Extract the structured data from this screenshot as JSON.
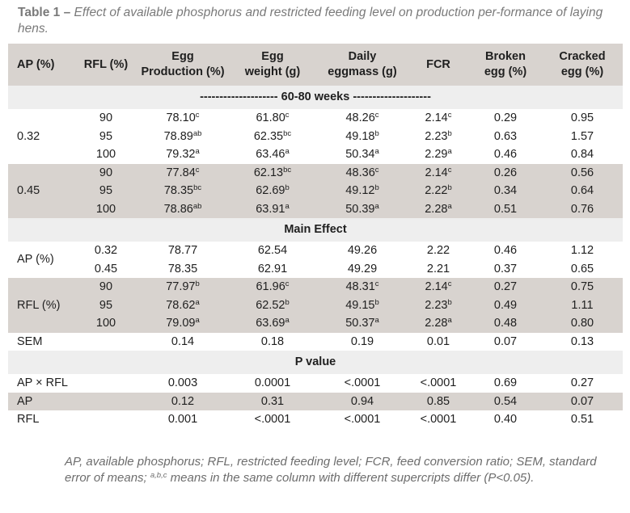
{
  "caption": {
    "label": "Table 1 –",
    "title": "Effect of available phosphorus and restricted feeding level on production per-formance of laying hens."
  },
  "headers": [
    {
      "l1": "AP (%)",
      "l2": ""
    },
    {
      "l1": "RFL (%)",
      "l2": ""
    },
    {
      "l1": "Egg",
      "l2": "Production (%)"
    },
    {
      "l1": "Egg",
      "l2": "weight (g)"
    },
    {
      "l1": "Daily",
      "l2": "eggmass (g)"
    },
    {
      "l1": "FCR",
      "l2": ""
    },
    {
      "l1": "Broken",
      "l2": "egg (%)"
    },
    {
      "l1": "Cracked",
      "l2": "egg (%)"
    }
  ],
  "sections": {
    "weeks": "-------------------- 60-80 weeks --------------------",
    "main_effect": "Main Effect",
    "p_value": "P value"
  },
  "weeks_groups": [
    {
      "ap": "0.32",
      "rows": [
        {
          "rfl": "90",
          "egg_prod": "78.10",
          "egg_prod_sup": "c",
          "egg_wt": "61.80",
          "egg_wt_sup": "c",
          "eggmass": "48.26",
          "eggmass_sup": "c",
          "fcr": "2.14",
          "fcr_sup": "c",
          "broken": "0.29",
          "cracked": "0.95"
        },
        {
          "rfl": "95",
          "egg_prod": "78.89",
          "egg_prod_sup": "ab",
          "egg_wt": "62.35",
          "egg_wt_sup": "bc",
          "eggmass": "49.18",
          "eggmass_sup": "b",
          "fcr": "2.23",
          "fcr_sup": "b",
          "broken": "0.63",
          "cracked": "1.57"
        },
        {
          "rfl": "100",
          "egg_prod": "79.32",
          "egg_prod_sup": "a",
          "egg_wt": "63.46",
          "egg_wt_sup": "a",
          "eggmass": "50.34",
          "eggmass_sup": "a",
          "fcr": "2.29",
          "fcr_sup": "a",
          "broken": "0.46",
          "cracked": "0.84"
        }
      ]
    },
    {
      "ap": "0.45",
      "rows": [
        {
          "rfl": "90",
          "egg_prod": "77.84",
          "egg_prod_sup": "c",
          "egg_wt": "62.13",
          "egg_wt_sup": "bc",
          "eggmass": "48.36",
          "eggmass_sup": "c",
          "fcr": "2.14",
          "fcr_sup": "c",
          "broken": "0.26",
          "cracked": "0.56"
        },
        {
          "rfl": "95",
          "egg_prod": "78.35",
          "egg_prod_sup": "bc",
          "egg_wt": "62.69",
          "egg_wt_sup": "b",
          "eggmass": "49.12",
          "eggmass_sup": "b",
          "fcr": "2.22",
          "fcr_sup": "b",
          "broken": "0.34",
          "cracked": "0.64"
        },
        {
          "rfl": "100",
          "egg_prod": "78.86",
          "egg_prod_sup": "ab",
          "egg_wt": "63.91",
          "egg_wt_sup": "a",
          "eggmass": "50.39",
          "eggmass_sup": "a",
          "fcr": "2.28",
          "fcr_sup": "a",
          "broken": "0.51",
          "cracked": "0.76"
        }
      ]
    }
  ],
  "main_ap": {
    "label": "AP (%)",
    "rows": [
      {
        "level": "0.32",
        "egg_prod": "78.77",
        "egg_wt": "62.54",
        "eggmass": "49.26",
        "fcr": "2.22",
        "broken": "0.46",
        "cracked": "1.12"
      },
      {
        "level": "0.45",
        "egg_prod": "78.35",
        "egg_wt": "62.91",
        "eggmass": "49.29",
        "fcr": "2.21",
        "broken": "0.37",
        "cracked": "0.65"
      }
    ]
  },
  "main_rfl": {
    "label": "RFL (%)",
    "rows": [
      {
        "level": "90",
        "egg_prod": "77.97",
        "egg_prod_sup": "b",
        "egg_wt": "61.96",
        "egg_wt_sup": "c",
        "eggmass": "48.31",
        "eggmass_sup": "c",
        "fcr": "2.14",
        "fcr_sup": "c",
        "broken": "0.27",
        "cracked": "0.75"
      },
      {
        "level": "95",
        "egg_prod": "78.62",
        "egg_prod_sup": "a",
        "egg_wt": "62.52",
        "egg_wt_sup": "b",
        "eggmass": "49.15",
        "eggmass_sup": "b",
        "fcr": "2.23",
        "fcr_sup": "b",
        "broken": "0.49",
        "cracked": "1.11"
      },
      {
        "level": "100",
        "egg_prod": "79.09",
        "egg_prod_sup": "a",
        "egg_wt": "63.69",
        "egg_wt_sup": "a",
        "eggmass": "50.37",
        "eggmass_sup": "a",
        "fcr": "2.28",
        "fcr_sup": "a",
        "broken": "0.48",
        "cracked": "0.80"
      }
    ]
  },
  "sem": {
    "label": "SEM",
    "egg_prod": "0.14",
    "egg_wt": "0.18",
    "eggmass": "0.19",
    "fcr": "0.01",
    "broken": "0.07",
    "cracked": "0.13"
  },
  "p_values": [
    {
      "label": "AP × RFL",
      "egg_prod": "0.003",
      "egg_wt": "0.0001",
      "eggmass": "<.0001",
      "fcr": "<.0001",
      "broken": "0.69",
      "cracked": "0.27"
    },
    {
      "label": "AP",
      "egg_prod": "0.12",
      "egg_wt": "0.31",
      "eggmass": "0.94",
      "fcr": "0.85",
      "broken": "0.54",
      "cracked": "0.07"
    },
    {
      "label": "RFL",
      "egg_prod": "0.001",
      "egg_wt": "<.0001",
      "eggmass": "<.0001",
      "fcr": "<.0001",
      "broken": "0.40",
      "cracked": "0.51"
    }
  ],
  "footnote": {
    "part1": "AP, available phosphorus; RFL, restricted feeding level; FCR, feed conversion ratio; SEM, standard error of means; ",
    "sup": "a,b,c",
    "part2": " means in the same column with different supercripts differ (P<0.05)."
  }
}
